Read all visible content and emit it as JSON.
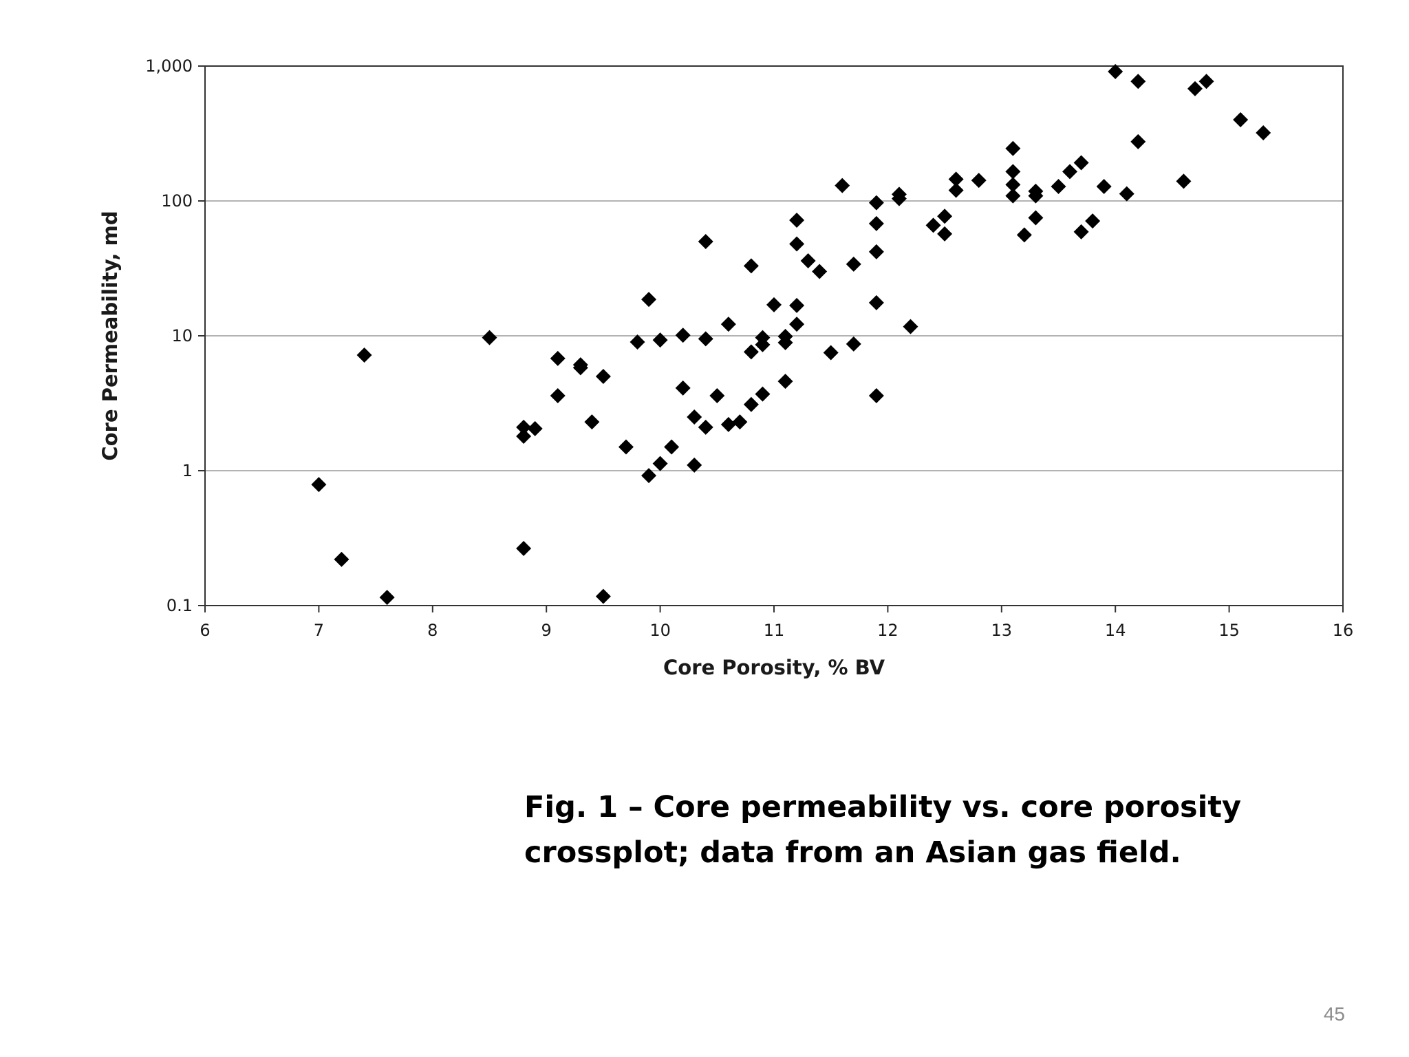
{
  "slide": {
    "caption_line1": "Fig. 1 – Core permeability vs. core porosity",
    "caption_line2": "crossplot; data from an Asian gas field.",
    "page_number": "45"
  },
  "colors": {
    "marker": "#000000",
    "axis": "#333333",
    "gridline": "#9a9a9a",
    "text": "#1a1a1a"
  },
  "chart_data": {
    "type": "scatter",
    "title": "",
    "xlabel": "Core Porosity, % BV",
    "ylabel": "Core Permeability, md",
    "xlim": [
      6,
      16
    ],
    "ylim": [
      0.1,
      1000
    ],
    "yscale": "log",
    "grid": "horizontal major gridlines",
    "legend": "none",
    "marker": "diamond",
    "x_ticks": [
      6,
      7,
      8,
      9,
      10,
      11,
      12,
      13,
      14,
      15,
      16
    ],
    "x_tick_labels": [
      "6",
      "7",
      "8",
      "9",
      "10",
      "11",
      "12",
      "13",
      "14",
      "15",
      "16"
    ],
    "y_ticks": [
      0.1,
      1,
      10,
      100,
      1000
    ],
    "y_tick_labels": [
      "0.1",
      "1",
      "10",
      "100",
      "1,000"
    ],
    "points": [
      {
        "x": 7.0,
        "y": 0.79
      },
      {
        "x": 7.2,
        "y": 0.22
      },
      {
        "x": 7.4,
        "y": 7.2
      },
      {
        "x": 7.6,
        "y": 0.115
      },
      {
        "x": 8.5,
        "y": 9.7
      },
      {
        "x": 8.8,
        "y": 2.1
      },
      {
        "x": 8.8,
        "y": 1.8
      },
      {
        "x": 8.8,
        "y": 0.265
      },
      {
        "x": 8.9,
        "y": 2.05
      },
      {
        "x": 9.1,
        "y": 6.8
      },
      {
        "x": 9.1,
        "y": 3.6
      },
      {
        "x": 9.3,
        "y": 6.1
      },
      {
        "x": 9.3,
        "y": 5.8
      },
      {
        "x": 9.4,
        "y": 2.3
      },
      {
        "x": 9.5,
        "y": 5.0
      },
      {
        "x": 9.5,
        "y": 0.117
      },
      {
        "x": 9.7,
        "y": 1.5
      },
      {
        "x": 9.8,
        "y": 9.0
      },
      {
        "x": 9.9,
        "y": 18.6
      },
      {
        "x": 9.9,
        "y": 0.92
      },
      {
        "x": 10.0,
        "y": 9.3
      },
      {
        "x": 10.0,
        "y": 1.13
      },
      {
        "x": 10.1,
        "y": 1.5
      },
      {
        "x": 10.2,
        "y": 10.1
      },
      {
        "x": 10.2,
        "y": 4.1
      },
      {
        "x": 10.3,
        "y": 2.5
      },
      {
        "x": 10.3,
        "y": 1.1
      },
      {
        "x": 10.4,
        "y": 50
      },
      {
        "x": 10.4,
        "y": 9.5
      },
      {
        "x": 10.4,
        "y": 2.1
      },
      {
        "x": 10.5,
        "y": 3.6
      },
      {
        "x": 10.6,
        "y": 12.2
      },
      {
        "x": 10.6,
        "y": 2.2
      },
      {
        "x": 10.7,
        "y": 2.3
      },
      {
        "x": 10.8,
        "y": 33
      },
      {
        "x": 10.8,
        "y": 7.6
      },
      {
        "x": 10.8,
        "y": 3.1
      },
      {
        "x": 10.9,
        "y": 9.7
      },
      {
        "x": 10.9,
        "y": 8.6
      },
      {
        "x": 10.9,
        "y": 3.7
      },
      {
        "x": 11.0,
        "y": 17
      },
      {
        "x": 11.1,
        "y": 9.9
      },
      {
        "x": 11.1,
        "y": 8.9
      },
      {
        "x": 11.1,
        "y": 4.6
      },
      {
        "x": 11.2,
        "y": 72
      },
      {
        "x": 11.2,
        "y": 48
      },
      {
        "x": 11.2,
        "y": 16.8
      },
      {
        "x": 11.2,
        "y": 12.2
      },
      {
        "x": 11.3,
        "y": 36
      },
      {
        "x": 11.4,
        "y": 30
      },
      {
        "x": 11.5,
        "y": 7.5
      },
      {
        "x": 11.6,
        "y": 130
      },
      {
        "x": 11.7,
        "y": 34
      },
      {
        "x": 11.7,
        "y": 8.7
      },
      {
        "x": 11.9,
        "y": 97
      },
      {
        "x": 11.9,
        "y": 68
      },
      {
        "x": 11.9,
        "y": 42
      },
      {
        "x": 11.9,
        "y": 17.6
      },
      {
        "x": 11.9,
        "y": 3.6
      },
      {
        "x": 12.1,
        "y": 112
      },
      {
        "x": 12.1,
        "y": 104
      },
      {
        "x": 12.2,
        "y": 11.7
      },
      {
        "x": 12.4,
        "y": 66
      },
      {
        "x": 12.5,
        "y": 77
      },
      {
        "x": 12.5,
        "y": 57
      },
      {
        "x": 12.6,
        "y": 145
      },
      {
        "x": 12.6,
        "y": 120
      },
      {
        "x": 12.8,
        "y": 142
      },
      {
        "x": 13.1,
        "y": 245
      },
      {
        "x": 13.1,
        "y": 165
      },
      {
        "x": 13.1,
        "y": 132
      },
      {
        "x": 13.1,
        "y": 109
      },
      {
        "x": 13.2,
        "y": 56
      },
      {
        "x": 13.3,
        "y": 118
      },
      {
        "x": 13.3,
        "y": 109
      },
      {
        "x": 13.3,
        "y": 75
      },
      {
        "x": 13.5,
        "y": 128
      },
      {
        "x": 13.6,
        "y": 165
      },
      {
        "x": 13.7,
        "y": 192
      },
      {
        "x": 13.7,
        "y": 59
      },
      {
        "x": 13.8,
        "y": 71
      },
      {
        "x": 13.9,
        "y": 128
      },
      {
        "x": 14.0,
        "y": 910
      },
      {
        "x": 14.1,
        "y": 113
      },
      {
        "x": 14.2,
        "y": 770
      },
      {
        "x": 14.2,
        "y": 275
      },
      {
        "x": 14.6,
        "y": 140
      },
      {
        "x": 14.7,
        "y": 680
      },
      {
        "x": 14.8,
        "y": 770
      },
      {
        "x": 15.1,
        "y": 400
      },
      {
        "x": 15.3,
        "y": 320
      }
    ]
  }
}
